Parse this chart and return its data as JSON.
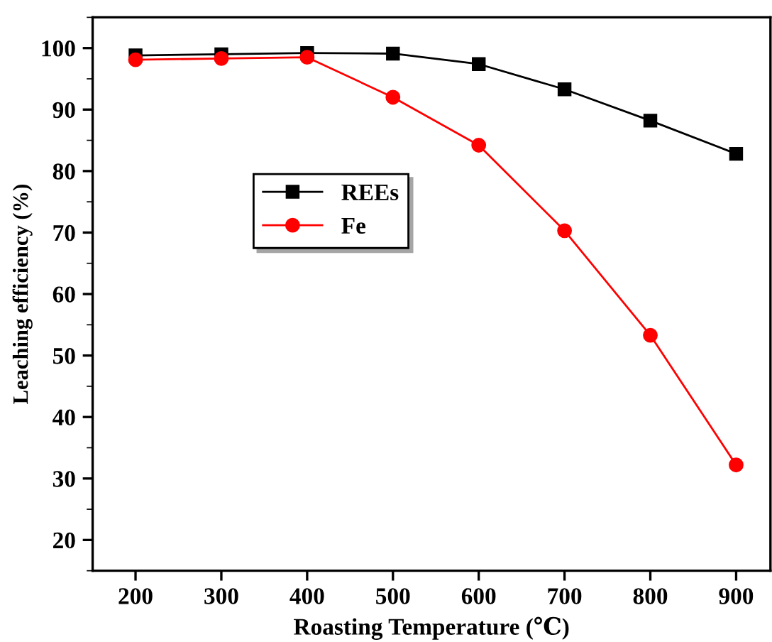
{
  "chart_data": {
    "type": "line",
    "xlabel": "Roasting Temperature (℃)",
    "ylabel": "Leaching efficiency (%)",
    "x": [
      200,
      300,
      400,
      500,
      600,
      700,
      800,
      900
    ],
    "series": [
      {
        "name": "REEs",
        "color": "#000000",
        "marker": "square",
        "values": [
          98.8,
          99.0,
          99.2,
          99.1,
          97.4,
          93.3,
          88.2,
          82.8
        ]
      },
      {
        "name": "Fe",
        "color": "#ff0000",
        "marker": "circle",
        "values": [
          98.1,
          98.3,
          98.5,
          92.0,
          84.2,
          70.3,
          53.3,
          32.2
        ]
      }
    ],
    "xlim": [
      150,
      940
    ],
    "xticks": [
      200,
      300,
      400,
      500,
      600,
      700,
      800,
      900
    ],
    "ylim": [
      15,
      105
    ],
    "yticks": [
      20,
      30,
      40,
      50,
      60,
      70,
      80,
      90,
      100
    ],
    "grid": false,
    "legend": "center left",
    "line_style": "solid"
  }
}
